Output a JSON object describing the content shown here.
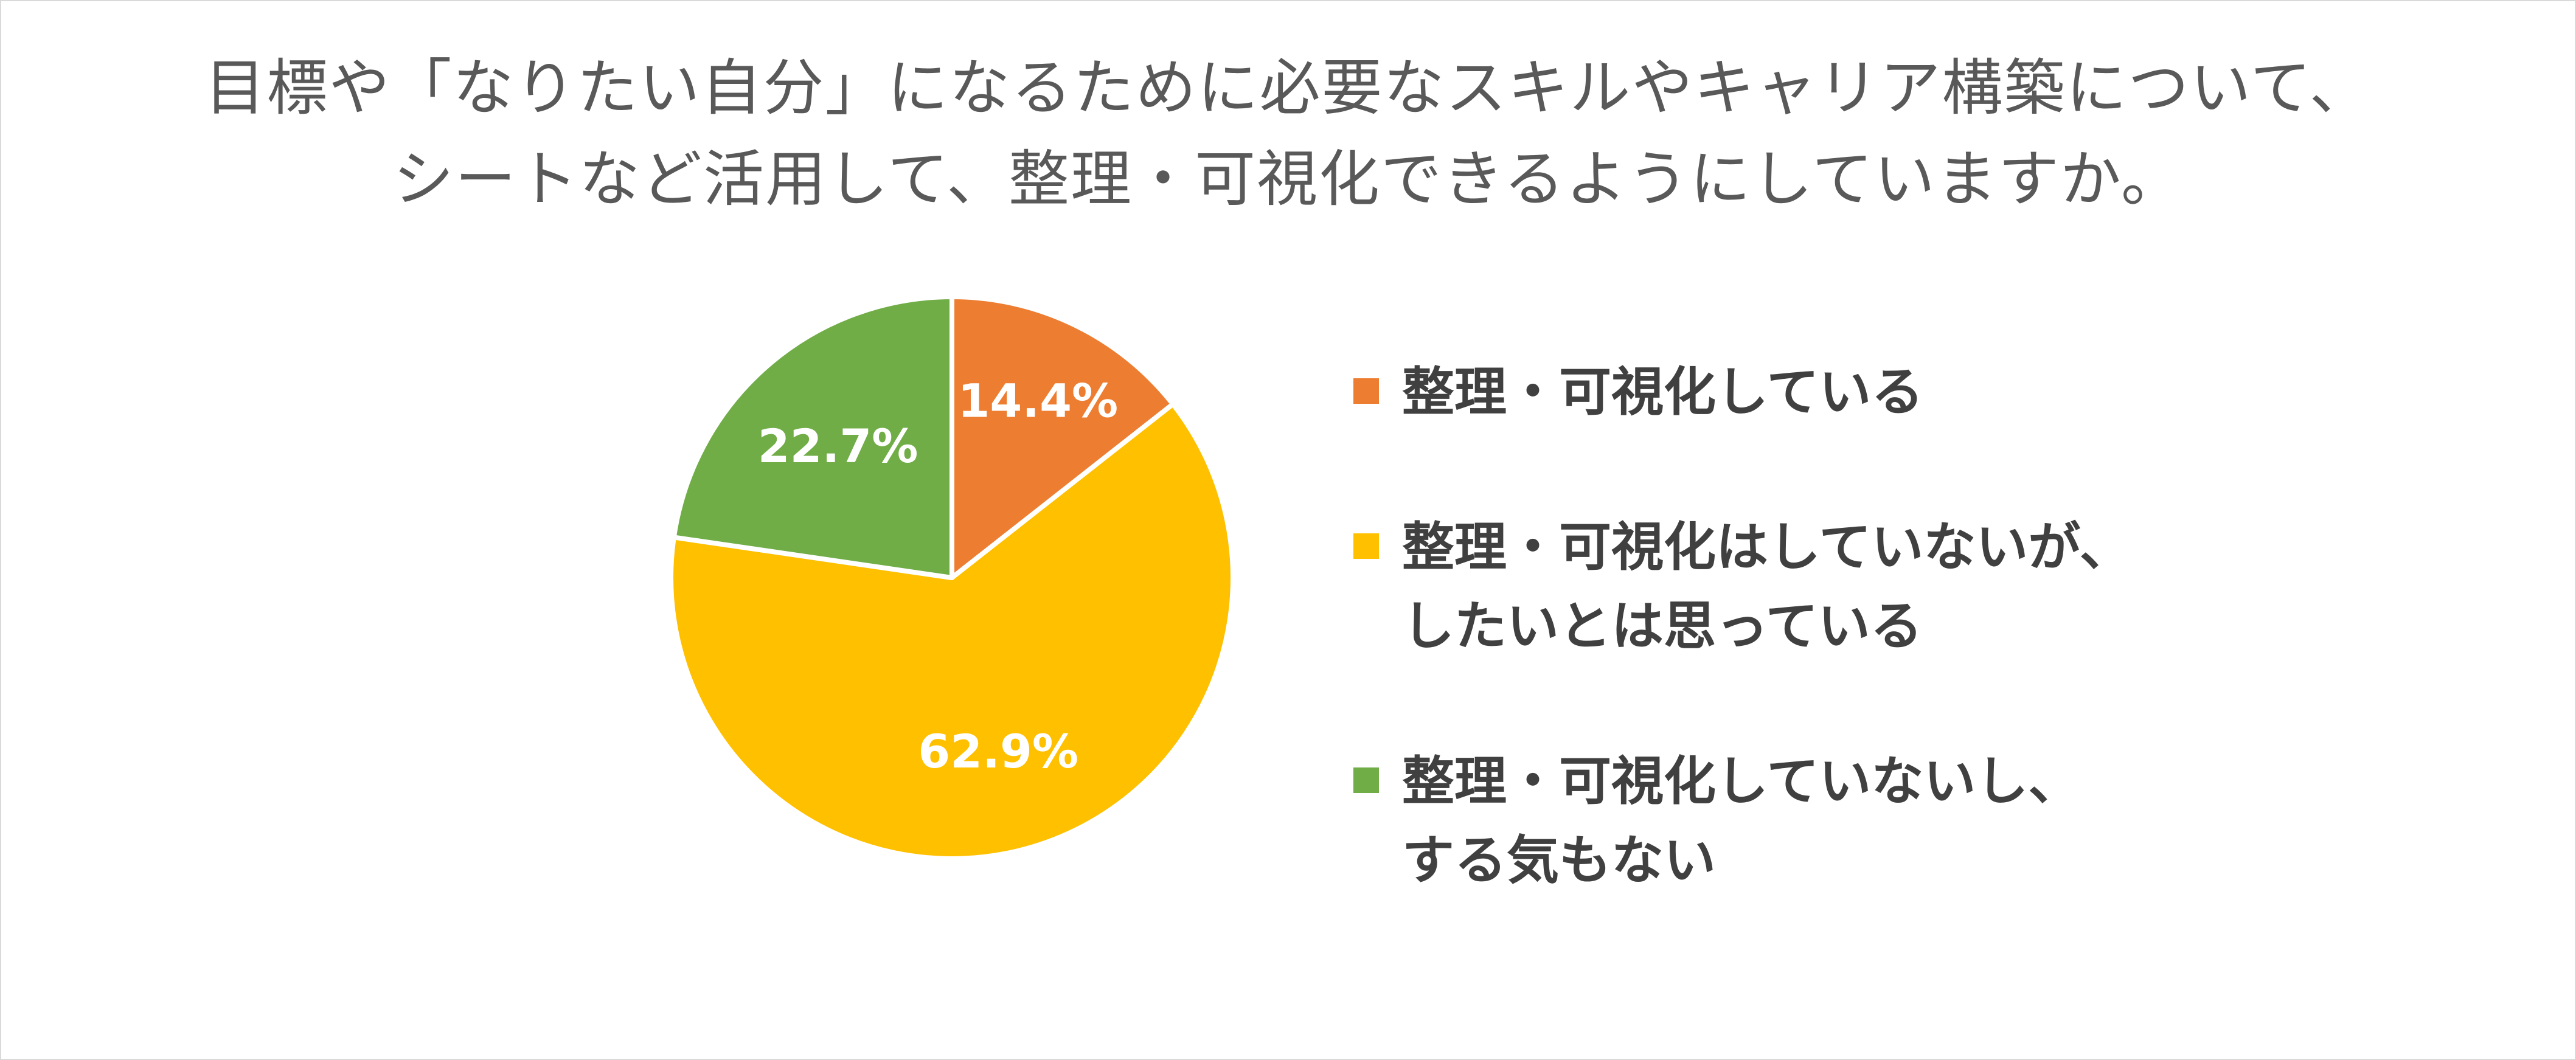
{
  "title_lines": [
    "目標や「なりたい自分」になるために必要なスキルやキャリア構築について、",
    "シートなど活用して、整理・可視化できるようにしていますか。"
  ],
  "chart_data": {
    "type": "pie",
    "title": "目標や「なりたい自分」になるために必要なスキルやキャリア構築について、シートなど活用して、整理・可視化できるようにしていますか。",
    "unit": "%",
    "slices": [
      {
        "label_lines": [
          "整理・可視化している"
        ],
        "value": 14.4,
        "display": "14.4%",
        "color": "#ED7D31"
      },
      {
        "label_lines": [
          "整理・可視化はしていないが、",
          "したいとは思っている"
        ],
        "value": 62.9,
        "display": "62.9%",
        "color": "#FFC000"
      },
      {
        "label_lines": [
          "整理・可視化していないし、",
          "する気もない"
        ],
        "value": 22.7,
        "display": "22.7%",
        "color": "#70AD47"
      }
    ],
    "legend_position": "right",
    "data_label_color": "#FFFFFF"
  }
}
